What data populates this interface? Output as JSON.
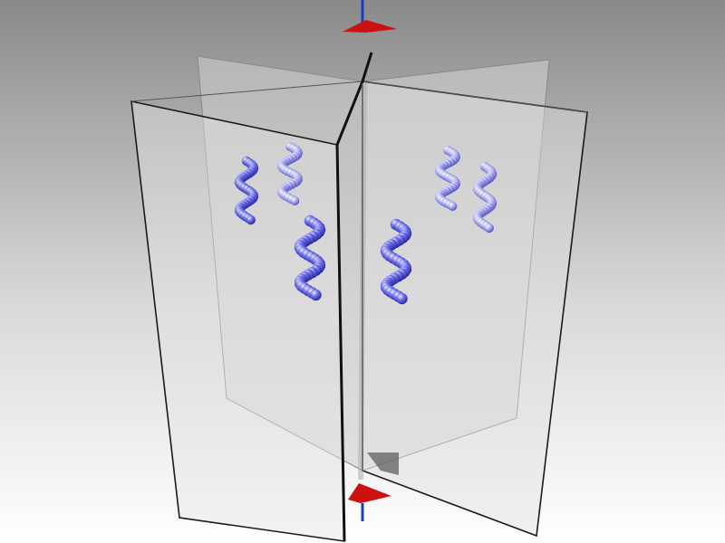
{
  "scene": {
    "description_kind": "3d-render",
    "colors": {
      "background_top": "#8a8a8a",
      "background_bottom": "#ffffff",
      "plane_fill": "#d9d9d9",
      "plane_edge": "#1a1a1a",
      "axis_line": "#111111",
      "helix_blue": "#4a4ae0",
      "helix_highlight": "#c8c8ff",
      "marker_red": "#cc1111",
      "marker_blue": "#1a3ccc"
    },
    "icons": {
      "top_marker": "red-triangle-flag",
      "bottom_marker": "red-triangle-flag"
    }
  }
}
